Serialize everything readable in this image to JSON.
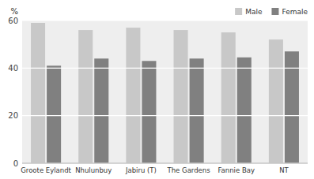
{
  "chart_data": {
    "type": "bar",
    "categories": [
      "Groote Eylandt",
      "Nhulunbuy",
      "Jabiru (T)",
      "The Gardens",
      "Fannie Bay",
      "NT"
    ],
    "series": [
      {
        "name": "Male",
        "color": "#c8c8c8",
        "values": [
          59,
          56,
          57,
          56,
          55,
          52
        ]
      },
      {
        "name": "Female",
        "color": "#808080",
        "values": [
          41,
          44,
          43,
          44,
          44.5,
          47
        ]
      }
    ],
    "ylabel": "%",
    "ylim": [
      0,
      60
    ],
    "yticks": [
      0,
      20,
      40,
      60
    ],
    "grid": true,
    "legend": "upper right"
  }
}
